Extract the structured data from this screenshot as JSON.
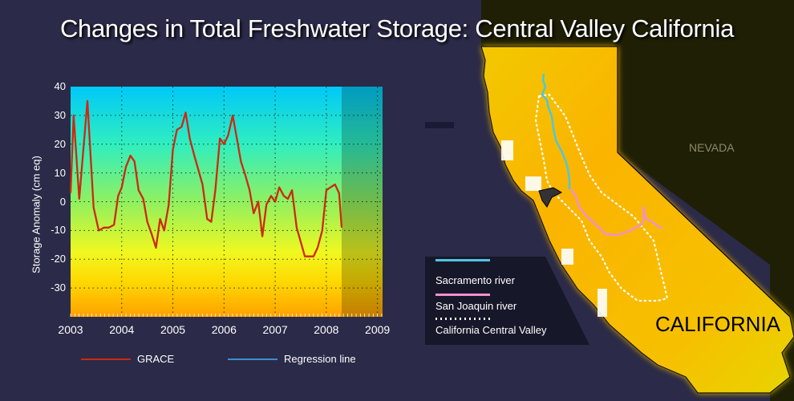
{
  "title": "Changes in Total Freshwater Storage: Central Valley California",
  "colors": {
    "background": "#2b2a48",
    "grace_line": "#cc2a10",
    "regression_line": "#3a8fd0",
    "sacramento_river": "#4ec6e0",
    "san_joaquin_river": "#f090d0",
    "central_valley": "#ffffff",
    "california_fill": "#fbb400",
    "nevada_fill": "#1e1e06"
  },
  "chart_data": {
    "type": "line",
    "title": "",
    "xlabel": "",
    "ylabel": "Storage Anomaly (cm eq)",
    "xlim": [
      2003,
      2009.1
    ],
    "ylim": [
      -40,
      40
    ],
    "x_ticks": [
      "2003",
      "2004",
      "2005",
      "2006",
      "2007",
      "2008",
      "2009"
    ],
    "y_ticks": [
      "40",
      "30",
      "20",
      "10",
      "0",
      "-10",
      "-20",
      "-30"
    ],
    "grid": true,
    "background": "vertical gradient (cyan top to orange bottom)",
    "shaded_region": {
      "x_start": 2008.3,
      "x_end": 2009.1
    },
    "legend": [
      {
        "label": "GRACE",
        "color": "#cc2a10"
      },
      {
        "label": "Regression line",
        "color": "#3a8fd0"
      }
    ],
    "legend_position": "bottom",
    "series": [
      {
        "name": "GRACE",
        "x": [
          2003.0,
          2003.06,
          2003.17,
          2003.33,
          2003.45,
          2003.55,
          2003.65,
          2003.75,
          2003.85,
          2003.93,
          2004.0,
          2004.08,
          2004.17,
          2004.25,
          2004.33,
          2004.42,
          2004.5,
          2004.58,
          2004.67,
          2004.75,
          2004.83,
          2004.92,
          2005.0,
          2005.08,
          2005.17,
          2005.25,
          2005.33,
          2005.42,
          2005.5,
          2005.58,
          2005.67,
          2005.75,
          2005.83,
          2005.92,
          2006.0,
          2006.08,
          2006.17,
          2006.25,
          2006.33,
          2006.42,
          2006.5,
          2006.58,
          2006.67,
          2006.75,
          2006.83,
          2006.92,
          2007.0,
          2007.08,
          2007.17,
          2007.25,
          2007.33,
          2007.42,
          2007.5,
          2007.58,
          2007.67,
          2007.75,
          2007.83,
          2007.92,
          2008.0,
          2008.08,
          2008.17,
          2008.25,
          2008.3
        ],
        "values": [
          3,
          30,
          1,
          35,
          -2,
          -10,
          -9,
          -9,
          -8,
          2,
          5,
          12,
          16,
          14,
          4,
          1,
          -7,
          -11,
          -16,
          -6,
          -10,
          -1,
          18,
          25,
          26,
          31,
          22,
          16,
          11,
          6,
          -6,
          -7,
          4,
          22,
          20,
          23,
          30,
          22,
          14,
          9,
          4,
          -4,
          0,
          -12,
          -1,
          2,
          0,
          5,
          2,
          1,
          4,
          -9,
          -14,
          -19,
          -19,
          -19,
          -16,
          -10,
          4,
          5,
          6,
          3,
          -9
        ]
      }
    ]
  },
  "map": {
    "state_labels": {
      "nevada": "NEVADA",
      "california": "CALIFORNIA"
    },
    "legend": [
      {
        "label": "Sacramento river",
        "style": "solid",
        "color": "#4ec6e0"
      },
      {
        "label": "San Joaquin river",
        "style": "solid",
        "color": "#f090d0"
      },
      {
        "label": "California Central Valley",
        "style": "dotted",
        "color": "#ffffff"
      }
    ]
  }
}
